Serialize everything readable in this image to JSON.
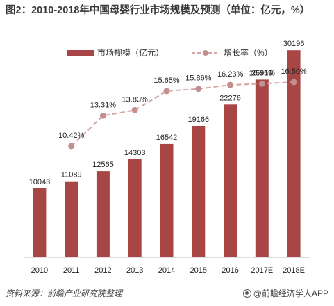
{
  "title": "图2：2010-2018年中国母婴行业市场规模及预测（单位：亿元，%）",
  "source_text": "资料来源：前瞻产业研究院整理",
  "credit_text": "@前瞻经济学人APP",
  "colors": {
    "bar": "#a84646",
    "line": "#d6a5a5",
    "marker": "#c48f8f",
    "axis": "#bfbfbf"
  },
  "chart_data": {
    "type": "bar+line",
    "categories": [
      "2010",
      "2011",
      "2012",
      "2013",
      "2014",
      "2015",
      "2016",
      "2017E",
      "2018E"
    ],
    "series": [
      {
        "name": "市场规模（亿元）",
        "type": "bar",
        "values": [
          10043,
          11089,
          12565,
          14303,
          16542,
          19166,
          22276,
          25919,
          30196
        ]
      },
      {
        "name": "增长率（%）",
        "type": "line",
        "values": [
          null,
          10.42,
          13.31,
          13.83,
          15.65,
          15.86,
          16.23,
          16.35,
          16.5
        ],
        "labels": [
          "",
          "10.42%",
          "13.31%",
          "13.83%",
          "15.65%",
          "15.86%",
          "16.23%",
          "16.35%",
          "16.50%"
        ]
      }
    ],
    "legend_position": "top-center",
    "grid": false
  }
}
